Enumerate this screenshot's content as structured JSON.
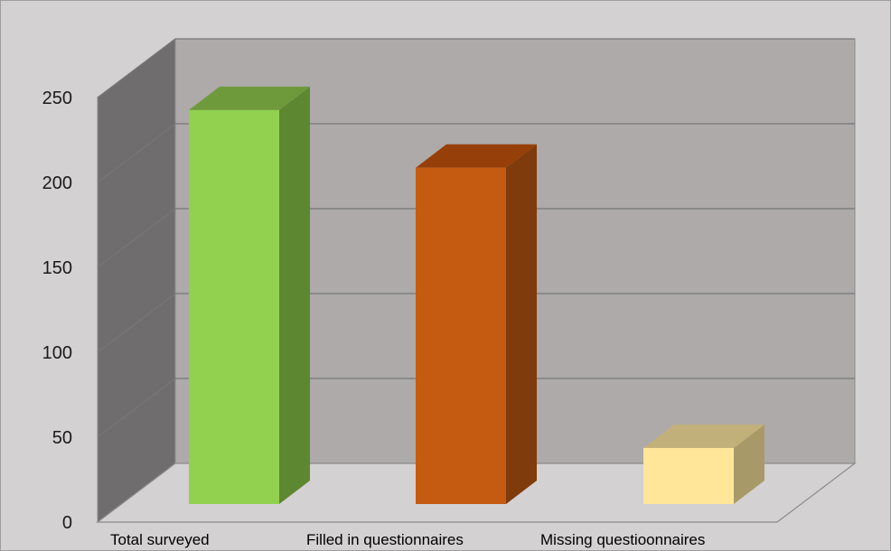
{
  "chart_data": {
    "type": "bar",
    "style": "3d-column",
    "categories": [
      "Total surveyed",
      "Filled in questionnaires",
      "Missing questioonnaires"
    ],
    "values": [
      232,
      198,
      33
    ],
    "ylim": [
      0,
      250
    ],
    "yticks": [
      0,
      50,
      100,
      150,
      200,
      250
    ],
    "title": "",
    "xlabel": "",
    "ylabel": "",
    "grid": true,
    "legend": "none",
    "colors": {
      "bars": [
        {
          "front": "#92d050",
          "side": "#5e8731",
          "top": "#6f9a3c"
        },
        {
          "front": "#c55a11",
          "side": "#7f3b0b",
          "top": "#973f08"
        },
        {
          "front": "#ffe699",
          "side": "#a89a68",
          "top": "#c2b07a"
        }
      ],
      "back_wall": "#adaaa9",
      "side_wall": "#6f6d6e",
      "floor": "#d3d1d2",
      "gridline": "#777777",
      "background": "#d3d1d2"
    }
  }
}
